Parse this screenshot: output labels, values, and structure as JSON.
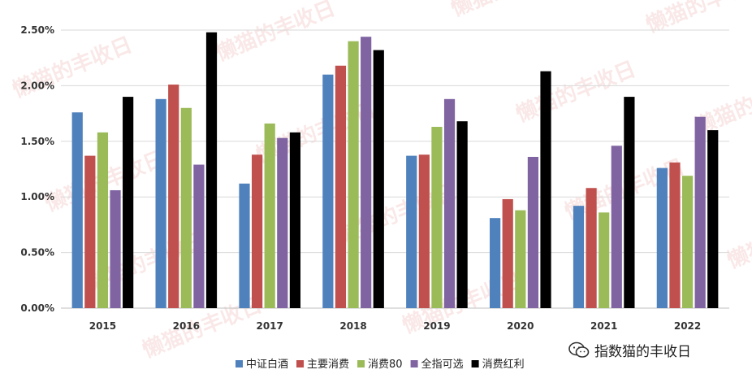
{
  "chart_data": {
    "type": "bar",
    "title": "",
    "xlabel": "",
    "ylabel": "",
    "categories": [
      "2015",
      "2016",
      "2017",
      "2018",
      "2019",
      "2020",
      "2021",
      "2022"
    ],
    "ylim": [
      0,
      2.5
    ],
    "yticks": [
      "0.00%",
      "0.50%",
      "1.00%",
      "1.50%",
      "2.00%",
      "2.50%"
    ],
    "ytick_values": [
      0,
      0.5,
      1.0,
      1.5,
      2.0,
      2.5
    ],
    "grid": "horizontal",
    "legend_position": "bottom",
    "series": [
      {
        "name": "中证白酒",
        "color": "#4f81bd",
        "values": [
          1.76,
          1.88,
          1.12,
          2.1,
          1.37,
          0.81,
          0.92,
          1.26
        ]
      },
      {
        "name": "主要消费",
        "color": "#c0504d",
        "values": [
          1.37,
          2.01,
          1.38,
          2.18,
          1.38,
          0.98,
          1.08,
          1.31
        ]
      },
      {
        "name": "消费80",
        "color": "#9bbb59",
        "values": [
          1.58,
          1.8,
          1.66,
          2.4,
          1.63,
          0.88,
          0.86,
          1.19
        ]
      },
      {
        "name": "全指可选",
        "color": "#8064a2",
        "values": [
          1.06,
          1.29,
          1.53,
          2.44,
          1.88,
          1.36,
          1.46,
          1.72
        ]
      },
      {
        "name": "消费红利",
        "color": "#000000",
        "values": [
          1.9,
          2.48,
          1.58,
          2.32,
          1.68,
          2.13,
          1.9,
          1.6
        ]
      }
    ]
  },
  "watermark": {
    "text": "懒猫的丰收日"
  },
  "credit": {
    "text": "指数猫的丰收日",
    "icon": "wechat-bubble-icon"
  }
}
